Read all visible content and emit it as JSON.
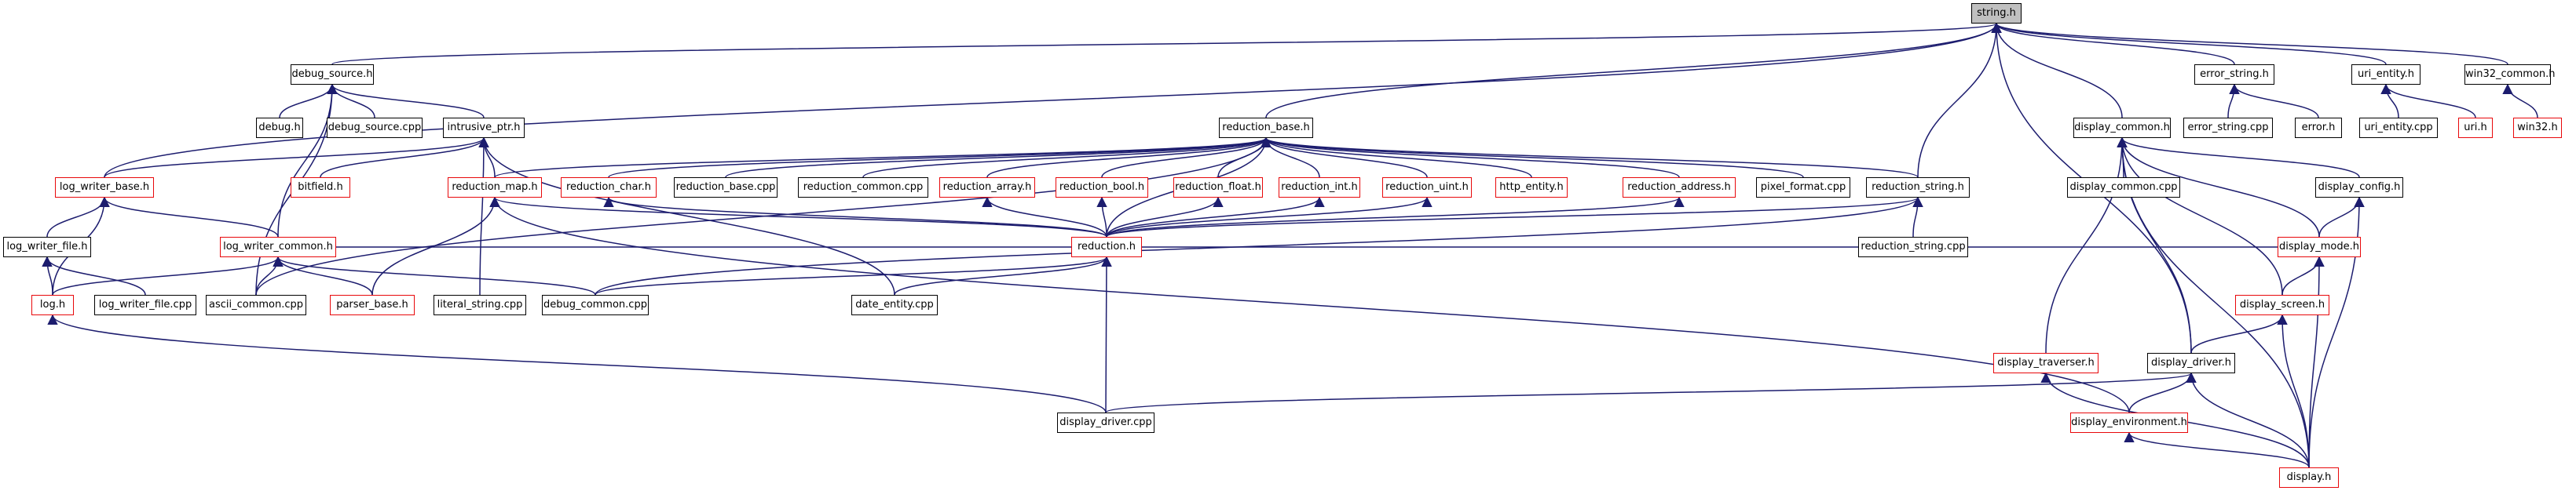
{
  "graph": {
    "nodes": [
      {
        "id": "string_h",
        "label": "string.h",
        "color": "black"
      },
      {
        "id": "debug_source_h",
        "label": "debug_source.h",
        "color": "black"
      },
      {
        "id": "error_string_h",
        "label": "error_string.h",
        "color": "black"
      },
      {
        "id": "uri_entity_h",
        "label": "uri_entity.h",
        "color": "black"
      },
      {
        "id": "win32_common_h",
        "label": "win32_common.h",
        "color": "black"
      },
      {
        "id": "debug_h",
        "label": "debug.h",
        "color": "black"
      },
      {
        "id": "debug_source_cpp",
        "label": "debug_source.cpp",
        "color": "black"
      },
      {
        "id": "intrusive_ptr_h",
        "label": "intrusive_ptr.h",
        "color": "black"
      },
      {
        "id": "reduction_base_h",
        "label": "reduction_base.h",
        "color": "black"
      },
      {
        "id": "display_common_h",
        "label": "display_common.h",
        "color": "black"
      },
      {
        "id": "error_string_cpp",
        "label": "error_string.cpp",
        "color": "black"
      },
      {
        "id": "error_h",
        "label": "error.h",
        "color": "black"
      },
      {
        "id": "uri_entity_cpp",
        "label": "uri_entity.cpp",
        "color": "black"
      },
      {
        "id": "uri_h",
        "label": "uri.h",
        "color": "red"
      },
      {
        "id": "win32_h",
        "label": "win32.h",
        "color": "red"
      },
      {
        "id": "log_writer_base_h",
        "label": "log_writer_base.h",
        "color": "red"
      },
      {
        "id": "bitfield_h",
        "label": "bitfield.h",
        "color": "red"
      },
      {
        "id": "reduction_map_h",
        "label": "reduction_map.h",
        "color": "red"
      },
      {
        "id": "reduction_char_h",
        "label": "reduction_char.h",
        "color": "red"
      },
      {
        "id": "reduction_base_cpp",
        "label": "reduction_base.cpp",
        "color": "black"
      },
      {
        "id": "reduction_common_cpp",
        "label": "reduction_common.cpp",
        "color": "black"
      },
      {
        "id": "reduction_array_h",
        "label": "reduction_array.h",
        "color": "red"
      },
      {
        "id": "reduction_bool_h",
        "label": "reduction_bool.h",
        "color": "red"
      },
      {
        "id": "reduction_float_h",
        "label": "reduction_float.h",
        "color": "red"
      },
      {
        "id": "reduction_int_h",
        "label": "reduction_int.h",
        "color": "red"
      },
      {
        "id": "reduction_uint_h",
        "label": "reduction_uint.h",
        "color": "red"
      },
      {
        "id": "http_entity_h",
        "label": "http_entity.h",
        "color": "red"
      },
      {
        "id": "reduction_address_h",
        "label": "reduction_address.h",
        "color": "red"
      },
      {
        "id": "pixel_format_cpp",
        "label": "pixel_format.cpp",
        "color": "black"
      },
      {
        "id": "reduction_string_h",
        "label": "reduction_string.h",
        "color": "black"
      },
      {
        "id": "display_common_cpp",
        "label": "display_common.cpp",
        "color": "black"
      },
      {
        "id": "display_config_h",
        "label": "display_config.h",
        "color": "black"
      },
      {
        "id": "log_writer_file_h",
        "label": "log_writer_file.h",
        "color": "black"
      },
      {
        "id": "log_writer_common_h",
        "label": "log_writer_common.h",
        "color": "red"
      },
      {
        "id": "reduction_h",
        "label": "reduction.h",
        "color": "red"
      },
      {
        "id": "reduction_string_cpp",
        "label": "reduction_string.cpp",
        "color": "black"
      },
      {
        "id": "display_mode_h",
        "label": "display_mode.h",
        "color": "red"
      },
      {
        "id": "log_h",
        "label": "log.h",
        "color": "red"
      },
      {
        "id": "log_writer_file_cpp",
        "label": "log_writer_file.cpp",
        "color": "black"
      },
      {
        "id": "ascii_common_cpp",
        "label": "ascii_common.cpp",
        "color": "black"
      },
      {
        "id": "parser_base_h",
        "label": "parser_base.h",
        "color": "red"
      },
      {
        "id": "literal_string_cpp",
        "label": "literal_string.cpp",
        "color": "black"
      },
      {
        "id": "debug_common_cpp",
        "label": "debug_common.cpp",
        "color": "black"
      },
      {
        "id": "date_entity_cpp",
        "label": "date_entity.cpp",
        "color": "black"
      },
      {
        "id": "display_screen_h",
        "label": "display_screen.h",
        "color": "red"
      },
      {
        "id": "display_traverser_h",
        "label": "display_traverser.h",
        "color": "red"
      },
      {
        "id": "display_driver_h",
        "label": "display_driver.h",
        "color": "black"
      },
      {
        "id": "display_driver_cpp",
        "label": "display_driver.cpp",
        "color": "black"
      },
      {
        "id": "display_environment_h",
        "label": "display_environment.h",
        "color": "red"
      },
      {
        "id": "display_h",
        "label": "display.h",
        "color": "red"
      }
    ],
    "edges": [
      [
        "debug_source_h",
        "string_h"
      ],
      [
        "error_string_h",
        "string_h"
      ],
      [
        "uri_entity_h",
        "string_h"
      ],
      [
        "win32_common_h",
        "string_h"
      ],
      [
        "reduction_base_h",
        "string_h"
      ],
      [
        "display_common_h",
        "string_h"
      ],
      [
        "log_writer_base_h",
        "string_h"
      ],
      [
        "reduction_string_h",
        "string_h"
      ],
      [
        "display_driver_h",
        "string_h"
      ],
      [
        "debug_h",
        "debug_source_h"
      ],
      [
        "debug_source_cpp",
        "debug_source_h"
      ],
      [
        "intrusive_ptr_h",
        "debug_source_h"
      ],
      [
        "log_writer_common_h",
        "debug_source_h"
      ],
      [
        "ascii_common_cpp",
        "debug_source_h"
      ],
      [
        "error_string_cpp",
        "error_string_h"
      ],
      [
        "error_h",
        "error_string_h"
      ],
      [
        "uri_entity_cpp",
        "uri_entity_h"
      ],
      [
        "uri_h",
        "uri_entity_h"
      ],
      [
        "win32_h",
        "win32_common_h"
      ],
      [
        "log_writer_base_h",
        "intrusive_ptr_h"
      ],
      [
        "bitfield_h",
        "intrusive_ptr_h"
      ],
      [
        "reduction_map_h",
        "intrusive_ptr_h"
      ],
      [
        "literal_string_cpp",
        "intrusive_ptr_h"
      ],
      [
        "date_entity_cpp",
        "intrusive_ptr_h"
      ],
      [
        "reduction_map_h",
        "reduction_base_h"
      ],
      [
        "reduction_char_h",
        "reduction_base_h"
      ],
      [
        "reduction_base_cpp",
        "reduction_base_h"
      ],
      [
        "reduction_common_cpp",
        "reduction_base_h"
      ],
      [
        "reduction_array_h",
        "reduction_base_h"
      ],
      [
        "reduction_bool_h",
        "reduction_base_h"
      ],
      [
        "reduction_float_h",
        "reduction_base_h"
      ],
      [
        "reduction_int_h",
        "reduction_base_h"
      ],
      [
        "reduction_uint_h",
        "reduction_base_h"
      ],
      [
        "http_entity_h",
        "reduction_base_h"
      ],
      [
        "reduction_address_h",
        "reduction_base_h"
      ],
      [
        "pixel_format_cpp",
        "reduction_base_h"
      ],
      [
        "reduction_string_h",
        "reduction_base_h"
      ],
      [
        "reduction_h",
        "reduction_base_h"
      ],
      [
        "ascii_common_cpp",
        "reduction_base_h"
      ],
      [
        "display_common_cpp",
        "display_common_h"
      ],
      [
        "display_config_h",
        "display_common_h"
      ],
      [
        "display_mode_h",
        "display_common_h"
      ],
      [
        "display_screen_h",
        "display_common_h"
      ],
      [
        "display_traverser_h",
        "display_common_h"
      ],
      [
        "display_driver_h",
        "display_common_h"
      ],
      [
        "display_h",
        "display_common_h"
      ],
      [
        "log_writer_file_h",
        "log_writer_base_h"
      ],
      [
        "log_writer_common_h",
        "log_writer_base_h"
      ],
      [
        "log_h",
        "log_writer_base_h"
      ],
      [
        "reduction_h",
        "reduction_map_h"
      ],
      [
        "parser_base_h",
        "reduction_map_h"
      ],
      [
        "display_environment_h",
        "reduction_map_h"
      ],
      [
        "reduction_h",
        "reduction_char_h"
      ],
      [
        "reduction_h",
        "reduction_array_h"
      ],
      [
        "reduction_h",
        "reduction_bool_h"
      ],
      [
        "reduction_h",
        "reduction_float_h"
      ],
      [
        "reduction_h",
        "reduction_int_h"
      ],
      [
        "reduction_h",
        "reduction_uint_h"
      ],
      [
        "reduction_h",
        "reduction_address_h"
      ],
      [
        "reduction_h",
        "reduction_string_h"
      ],
      [
        "reduction_string_cpp",
        "reduction_string_h"
      ],
      [
        "debug_common_cpp",
        "reduction_string_h"
      ],
      [
        "display_mode_h",
        "display_config_h"
      ],
      [
        "display_h",
        "display_config_h"
      ],
      [
        "log_h",
        "log_writer_file_h"
      ],
      [
        "log_writer_file_cpp",
        "log_writer_file_h"
      ],
      [
        "log_h",
        "log_writer_common_h"
      ],
      [
        "ascii_common_cpp",
        "log_writer_common_h"
      ],
      [
        "parser_base_h",
        "log_writer_common_h"
      ],
      [
        "debug_common_cpp",
        "log_writer_common_h"
      ],
      [
        "log_writer_common_h",
        "reduction_h"
      ],
      [
        "date_entity_cpp",
        "reduction_h"
      ],
      [
        "debug_common_cpp",
        "reduction_h"
      ],
      [
        "display_driver_cpp",
        "reduction_h"
      ],
      [
        "display_mode_h",
        "reduction_h"
      ],
      [
        "display_screen_h",
        "display_mode_h"
      ],
      [
        "display_h",
        "display_mode_h"
      ],
      [
        "display_driver_cpp",
        "log_h"
      ],
      [
        "display_driver_h",
        "display_screen_h"
      ],
      [
        "display_h",
        "display_screen_h"
      ],
      [
        "display_h",
        "display_traverser_h"
      ],
      [
        "display_driver_cpp",
        "display_driver_h"
      ],
      [
        "display_environment_h",
        "display_driver_h"
      ],
      [
        "display_h",
        "display_driver_h"
      ],
      [
        "display_h",
        "display_environment_h"
      ]
    ]
  }
}
